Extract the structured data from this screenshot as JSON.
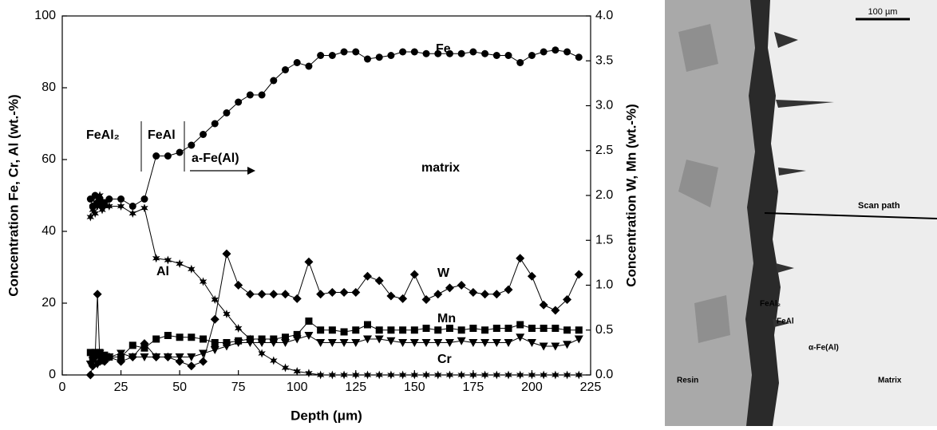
{
  "chart_data": {
    "type": "line",
    "x_label": "Depth (μm)",
    "y_label": "Concentration Fe, Cr, Al (wt.-%)",
    "y2_label": "Concentration W, Mn (wt.-%)",
    "x": [
      12,
      13,
      14,
      15,
      16,
      17,
      18,
      20,
      25,
      30,
      35,
      40,
      45,
      50,
      55,
      60,
      65,
      70,
      75,
      80,
      85,
      90,
      95,
      100,
      105,
      110,
      115,
      120,
      125,
      130,
      135,
      140,
      145,
      150,
      155,
      160,
      165,
      170,
      175,
      180,
      185,
      190,
      195,
      200,
      205,
      210,
      215,
      220
    ],
    "xlim": [
      0,
      225
    ],
    "xticks": [
      0,
      25,
      50,
      75,
      100,
      125,
      150,
      175,
      200,
      225
    ],
    "ylim": [
      0,
      100
    ],
    "yticks": [
      0,
      20,
      40,
      60,
      80,
      100
    ],
    "y2lim": [
      0,
      4
    ],
    "y2ticks": [
      {
        "value": 0,
        "label": "0.0"
      },
      {
        "value": 0.5,
        "label": "0.5"
      },
      {
        "value": 1,
        "label": "1.0"
      },
      {
        "value": 1.5,
        "label": "1.5"
      },
      {
        "value": 2,
        "label": "2.0"
      },
      {
        "value": 2.5,
        "label": "2.5"
      },
      {
        "value": 3,
        "label": "3.0"
      },
      {
        "value": 3.5,
        "label": "3.5"
      },
      {
        "value": 4,
        "label": "4.0"
      }
    ],
    "series": [
      {
        "name": "Fe",
        "color": "#000000",
        "marker": "circle",
        "values": [
          49,
          47,
          50,
          48,
          49,
          47,
          48,
          49,
          49,
          47,
          49,
          61,
          61,
          62,
          64,
          67,
          70,
          73,
          76,
          78,
          78,
          82,
          85,
          87,
          86,
          89,
          89,
          90,
          90,
          88,
          88.5,
          89,
          90,
          90,
          89.5,
          89.5,
          89.5,
          89.5,
          90,
          89.5,
          89,
          89,
          87,
          89,
          90,
          90.5,
          90,
          88.5
        ]
      },
      {
        "name": "Al",
        "color": "#000000",
        "marker": "star",
        "values": [
          44,
          46,
          45,
          47,
          50,
          46,
          47,
          47,
          47,
          45,
          46.5,
          32.5,
          32,
          31,
          29.5,
          26,
          21,
          17,
          13,
          10,
          6,
          4,
          2,
          1,
          0.5,
          0,
          0,
          0,
          0,
          0,
          0,
          0,
          0,
          0,
          0,
          0,
          0,
          0,
          0,
          0,
          0,
          0,
          0,
          0,
          0,
          0,
          0,
          0
        ]
      },
      {
        "name": "Cr",
        "color": "#000000",
        "marker": "triangle",
        "values": [
          3,
          4,
          5,
          3,
          6,
          4,
          5,
          5,
          6,
          5,
          5,
          5,
          5,
          5,
          5,
          6,
          7,
          8,
          9,
          9,
          9,
          9,
          9,
          10,
          11,
          9,
          9,
          9,
          9,
          10,
          10,
          9.5,
          9,
          9,
          9,
          9,
          9,
          9.5,
          9,
          9,
          9,
          9,
          10.5,
          9,
          8,
          8,
          8.5,
          10
        ]
      },
      {
        "name": "W",
        "color": "#000000",
        "marker": "diamond",
        "axis": "y2",
        "values": [
          0,
          0.1,
          0.2,
          0.9,
          0.15,
          0.2,
          0.15,
          0.2,
          0.15,
          0.2,
          0.35,
          0.2,
          0.2,
          0.15,
          0.1,
          0.15,
          0.62,
          1.35,
          1.0,
          0.9,
          0.9,
          0.9,
          0.9,
          0.85,
          1.26,
          0.9,
          0.92,
          0.92,
          0.92,
          1.1,
          1.05,
          0.88,
          0.85,
          1.12,
          0.84,
          0.9,
          0.97,
          1.0,
          0.92,
          0.9,
          0.9,
          0.95,
          1.3,
          1.1,
          0.78,
          0.72,
          0.84,
          1.12
        ]
      },
      {
        "name": "Mn",
        "color": "#000000",
        "marker": "square",
        "axis": "y2",
        "values": [
          0.25,
          0.2,
          0.25,
          0.22,
          0.25,
          0.2,
          0.22,
          0.2,
          0.2,
          0.33,
          0.3,
          0.4,
          0.44,
          0.42,
          0.42,
          0.4,
          0.36,
          0.36,
          0.38,
          0.4,
          0.4,
          0.4,
          0.42,
          0.45,
          0.6,
          0.5,
          0.5,
          0.48,
          0.5,
          0.56,
          0.5,
          0.5,
          0.5,
          0.5,
          0.52,
          0.5,
          0.52,
          0.5,
          0.52,
          0.5,
          0.52,
          0.52,
          0.56,
          0.52,
          0.52,
          0.52,
          0.5,
          0.5
        ]
      }
    ],
    "annotations": [
      "FeAl₂",
      "FeAl",
      "a-Fe(Al)",
      "matrix"
    ]
  },
  "micrograph": {
    "scale_bar": "100 µm",
    "labels": [
      "Scan path",
      "FeAl₂",
      "FeAl",
      "α-Fe(Al)",
      "Resin",
      "Matrix"
    ]
  }
}
